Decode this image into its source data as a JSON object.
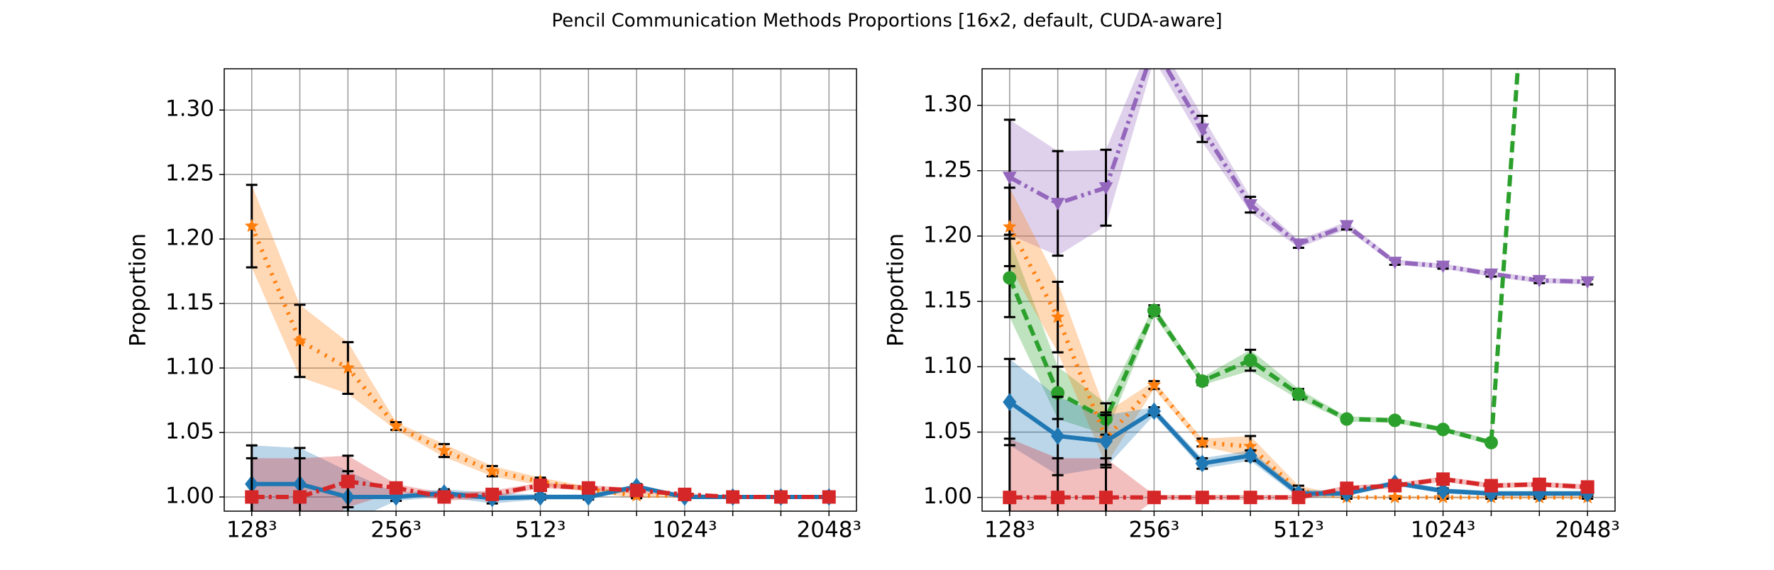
{
  "title": "Pencil Communication Methods Proportions [16x2, default, CUDA-aware]",
  "chart_data": [
    {
      "type": "line",
      "ylabel": "Proportion",
      "grid": true,
      "categories": [
        "128³",
        null,
        null,
        "256³",
        null,
        null,
        "512³",
        null,
        null,
        "1024³",
        null,
        null,
        "2048³"
      ],
      "ylim": [
        0.989,
        1.332
      ],
      "yticks": [
        {
          "value": 1,
          "label": "1.00"
        },
        1.05,
        {
          "value": 1.1,
          "label": "1.10"
        },
        1.15,
        {
          "value": 1.2,
          "label": "1.20"
        },
        1.25,
        {
          "value": 1.3,
          "label": "1.30"
        }
      ],
      "series": [
        {
          "color": "#ff7f0e",
          "marker": "star",
          "dash": "3 9",
          "values": [
            1.21,
            1.121,
            1.1,
            1.055,
            1.036,
            1.02,
            1.012,
            1.006,
            1.001,
            1.001,
            1.0,
            1.0,
            1.0
          ],
          "errors": [
            0.032,
            0.028,
            0.02,
            0.003,
            0.005,
            0.004,
            0.003,
            0.002,
            0.002,
            0.001,
            0.001,
            0.001,
            0.001
          ]
        },
        {
          "color": "#1f77b4",
          "marker": "diamond",
          "dash": "none",
          "values": [
            1.01,
            1.01,
            1.0,
            1.0,
            1.003,
            0.999,
            1.0,
            1.0,
            1.008,
            1.0,
            1.0,
            1.0,
            1.0
          ],
          "errors": [
            0.03,
            0.028,
            0.02,
            0.003,
            0.003,
            0.004,
            0.002,
            0.002,
            0.002,
            0.001,
            0.001,
            0.001,
            0.001
          ]
        },
        {
          "color": "#d62728",
          "marker": "square",
          "dash": "18 6 4 6",
          "values": [
            1.0,
            1.0,
            1.012,
            1.007,
            1.0,
            1.002,
            1.009,
            1.007,
            1.005,
            1.002,
            1.0,
            1.0,
            1.0
          ],
          "errors": [
            0.03,
            0.03,
            0.02,
            0.003,
            0.003,
            0.003,
            0.002,
            0.002,
            0.002,
            0.001,
            0.001,
            0.001,
            0.001
          ]
        }
      ]
    },
    {
      "type": "line",
      "ylabel": "Proportion",
      "grid": true,
      "categories": [
        "128³",
        null,
        null,
        "256³",
        null,
        null,
        "512³",
        null,
        null,
        "1024³",
        null,
        null,
        "2048³"
      ],
      "ylim": [
        0.9895,
        1.328
      ],
      "yticks": [
        {
          "value": 1,
          "label": "1.00"
        },
        1.05,
        {
          "value": 1.1,
          "label": "1.10"
        },
        1.15,
        {
          "value": 1.2,
          "label": "1.20"
        },
        1.25,
        {
          "value": 1.3,
          "label": "1.30"
        }
      ],
      "series": [
        {
          "color": "#9467bd",
          "marker": "tri",
          "dash": "18 6 4 6 4 6",
          "values": [
            1.245,
            1.225,
            1.237,
            1.345,
            1.282,
            1.224,
            1.194,
            1.208,
            1.18,
            1.177,
            1.171,
            1.166,
            1.165
          ],
          "errors": [
            0.044,
            0.04,
            0.029,
            0.01,
            0.01,
            0.006,
            0.003,
            0.003,
            0.002,
            0.002,
            0.002,
            0.002,
            0.002
          ]
        },
        {
          "color": "#2ca02c",
          "marker": "circle",
          "dash": "16 8",
          "values": [
            1.168,
            1.08,
            1.06,
            1.143,
            1.089,
            1.105,
            1.079,
            1.06,
            1.059,
            1.052,
            1.042,
            1.56,
            null
          ],
          "errors": [
            0.03,
            0.02,
            0.012,
            0.004,
            0.003,
            0.008,
            0.004,
            0.002,
            0.002,
            0.002,
            0.002,
            0.002,
            null
          ]
        },
        {
          "color": "#ff7f0e",
          "marker": "star",
          "dash": "3 9",
          "values": [
            1.207,
            1.138,
            1.045,
            1.086,
            1.042,
            1.039,
            1.005,
            1.0,
            1.0,
            1.0,
            1.0,
            1.0,
            1.0
          ],
          "errors": [
            0.03,
            0.027,
            0.02,
            0.003,
            0.003,
            0.008,
            0.004,
            0.001,
            0.001,
            0.001,
            0.001,
            0.001,
            0.001
          ]
        },
        {
          "color": "#1f77b4",
          "marker": "diamond",
          "dash": "none",
          "values": [
            1.073,
            1.047,
            1.043,
            1.066,
            1.026,
            1.032,
            1.003,
            1.003,
            1.011,
            1.005,
            1.003,
            1.003,
            1.003
          ],
          "errors": [
            0.033,
            0.03,
            0.02,
            0.003,
            0.004,
            0.004,
            0.003,
            0.002,
            0.002,
            0.002,
            0.002,
            0.002,
            0.002
          ]
        },
        {
          "color": "#d62728",
          "marker": "square",
          "dash": "18 6 4 6",
          "values": [
            1.0,
            1.0,
            1.0,
            1.0,
            1.0,
            1.0,
            1.0,
            1.007,
            1.009,
            1.014,
            1.009,
            1.01,
            1.008
          ],
          "errors": [
            0.045,
            0.03,
            0.03,
            0.002,
            0.002,
            0.002,
            0.002,
            0.002,
            0.002,
            0.002,
            0.002,
            0.002,
            0.002
          ]
        }
      ]
    }
  ]
}
